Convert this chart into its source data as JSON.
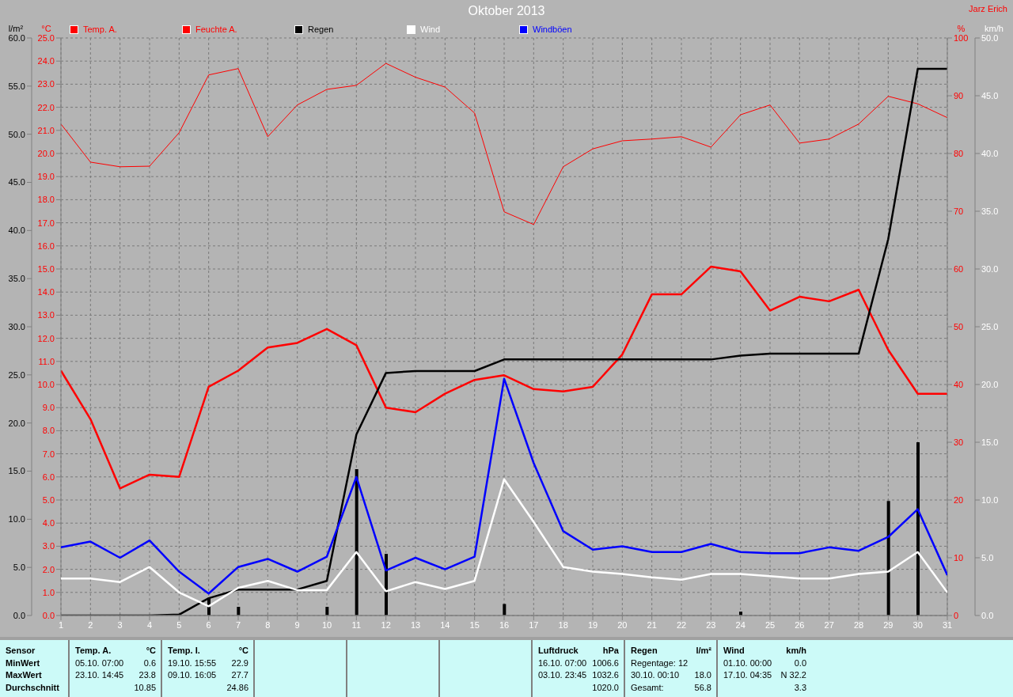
{
  "chart_data": [
    {
      "type": "line",
      "title": "Oktober 2013",
      "x": [
        1,
        2,
        3,
        4,
        5,
        6,
        7,
        8,
        9,
        10,
        11,
        12,
        13,
        14,
        15,
        16,
        17,
        18,
        19,
        20,
        21,
        22,
        23,
        24,
        25,
        26,
        27,
        28,
        29,
        30,
        31
      ],
      "xlim": [
        1,
        31
      ],
      "xticks": [
        1,
        2,
        3,
        4,
        5,
        6,
        7,
        8,
        9,
        10,
        11,
        12,
        13,
        14,
        15,
        16,
        17,
        18,
        19,
        20,
        21,
        22,
        23,
        24,
        25,
        26,
        27,
        28,
        29,
        30,
        31
      ],
      "ylabel": "°C",
      "ylim": [
        0,
        25
      ],
      "yticks": [
        {
          "value": 0,
          "label": "0.0"
        },
        {
          "value": 1,
          "label": "1.0"
        },
        {
          "value": 2,
          "label": "2.0"
        },
        {
          "value": 3,
          "label": "3.0"
        },
        {
          "value": 4,
          "label": "4.0"
        },
        {
          "value": 5,
          "label": "5.0"
        },
        {
          "value": 6,
          "label": "6.0"
        },
        {
          "value": 7,
          "label": "7.0"
        },
        {
          "value": 8,
          "label": "8.0"
        },
        {
          "value": 9,
          "label": "9.0"
        },
        {
          "value": 10,
          "label": "10.0"
        },
        {
          "value": 11,
          "label": "11.0"
        },
        {
          "value": 12,
          "label": "12.0"
        },
        {
          "value": 13,
          "label": "13.0"
        },
        {
          "value": 14,
          "label": "14.0"
        },
        {
          "value": 15,
          "label": "15.0"
        },
        {
          "value": 16,
          "label": "16.0"
        },
        {
          "value": 17,
          "label": "17.0"
        },
        {
          "value": 18,
          "label": "18.0"
        },
        {
          "value": 19,
          "label": "19.0"
        },
        {
          "value": 20,
          "label": "20.0"
        },
        {
          "value": 21,
          "label": "21.0"
        },
        {
          "value": 22,
          "label": "22.0"
        },
        {
          "value": 23,
          "label": "23.0"
        },
        {
          "value": 24,
          "label": "24.0"
        },
        {
          "value": 25,
          "label": "25.0"
        }
      ],
      "y2label": "%",
      "y2lim": [
        0,
        100
      ],
      "y2ticks": [
        0,
        10,
        20,
        30,
        40,
        50,
        60,
        70,
        80,
        90,
        100
      ],
      "y3label": "l/m²",
      "y3lim": [
        0,
        60
      ],
      "y3ticks": [
        {
          "value": 0,
          "label": "0.0"
        },
        {
          "value": 5,
          "label": "5.0"
        },
        {
          "value": 10,
          "label": "10.0"
        },
        {
          "value": 15,
          "label": "15.0"
        },
        {
          "value": 20,
          "label": "20.0"
        },
        {
          "value": 25,
          "label": "25.0"
        },
        {
          "value": 30,
          "label": "30.0"
        },
        {
          "value": 35,
          "label": "35.0"
        },
        {
          "value": 40,
          "label": "40.0"
        },
        {
          "value": 45,
          "label": "45.0"
        },
        {
          "value": 50,
          "label": "50.0"
        },
        {
          "value": 55,
          "label": "55.0"
        },
        {
          "value": 60,
          "label": "60.0"
        }
      ],
      "grid": true,
      "legend": "top left",
      "series": [
        {
          "name": "Temp. A.",
          "color": "#ff0000",
          "values": [
            10.6,
            8.5,
            5.5,
            6.1,
            6.0,
            9.9,
            10.6,
            11.6,
            11.8,
            12.4,
            11.7,
            9.0,
            8.8,
            9.6,
            10.2,
            10.4,
            9.8,
            9.7,
            9.9,
            11.3,
            13.9,
            13.9,
            15.1,
            14.9,
            13.2,
            13.8,
            13.6,
            14.1,
            11.5,
            9.6,
            9.6
          ]
        },
        {
          "name": "Feuchte A.",
          "color": "#ff0000",
          "axis": "y2",
          "values": [
            85.1,
            78.5,
            77.7,
            77.8,
            83.6,
            93.6,
            94.7,
            82.9,
            88.4,
            91.1,
            91.8,
            95.6,
            93.2,
            91.5,
            87.0,
            69.9,
            67.7,
            77.7,
            80.8,
            82.2,
            82.5,
            82.9,
            81.1,
            86.7,
            88.4,
            81.8,
            82.5,
            85.1,
            89.9,
            88.6,
            86.2
          ]
        },
        {
          "color": "#000000",
          "type": "bar",
          "axis": "y3",
          "values": [
            null,
            null,
            null,
            null,
            null,
            1.8,
            0.9,
            null,
            null,
            0.9,
            15.2,
            6.4,
            null,
            null,
            null,
            1.2,
            null,
            null,
            null,
            null,
            null,
            null,
            null,
            0.4,
            null,
            null,
            null,
            null,
            11.9,
            18.0,
            null
          ]
        },
        {
          "name": "Regen",
          "color": "#000000",
          "axis": "y3",
          "values": [
            0,
            0,
            0,
            0,
            0.1,
            1.8,
            2.7,
            2.7,
            2.7,
            3.6,
            18.8,
            25.2,
            25.4,
            25.4,
            25.4,
            26.6,
            26.6,
            26.6,
            26.6,
            26.6,
            26.6,
            26.6,
            26.6,
            27.0,
            27.2,
            27.2,
            27.2,
            27.2,
            39.1,
            56.8,
            56.8
          ]
        }
      ],
      "annotations": [
        "Jarz Erich",
        "Sensor",
        "MinWert",
        "MaxWert",
        "Durchschnitt",
        "Temp. A.\t°C",
        "05.10.  07:00\t0.6",
        "23.10.  14:45\t23.8",
        "\t10.85",
        "Temp. I.\t°C",
        "19.10.  15:55\t22.9",
        "09.10.  16:05\t27.7",
        "\t24.86",
        "Luftdruck\thPa",
        "16.10.  07:00\t1006.6",
        "03.10.  23:45\t1032.6",
        "\t1020.0",
        "Regen\tl/m²",
        "Regentage: 12",
        "30.10.  00:10\t18.0",
        "Gesamt:\t56.8",
        "Wind\tkm/h",
        "01.10.  00:00\t0.0",
        "17.10.  04:35\tN 32.2",
        "\t3.3"
      ]
    },
    {
      "type": "line",
      "tick_labels": "y",
      "legend": "top left",
      "x": [
        1,
        2,
        3,
        4,
        5,
        6,
        7,
        8,
        9,
        10,
        11,
        12,
        13,
        14,
        15,
        16,
        17,
        18,
        19,
        20,
        21,
        22,
        23,
        24,
        25,
        26,
        27,
        28,
        29,
        30,
        31
      ],
      "xlim": [
        1,
        31
      ],
      "ylabel": "km/h",
      "ylim": [
        0,
        50
      ],
      "yticks": [
        {
          "value": 0,
          "label": "0.0"
        },
        {
          "value": 5,
          "label": "5.0"
        },
        {
          "value": 10,
          "label": "10.0"
        },
        {
          "value": 15,
          "label": "15.0"
        },
        {
          "value": 20,
          "label": "20.0"
        },
        {
          "value": 25,
          "label": "25.0"
        },
        {
          "value": 30,
          "label": "30.0"
        },
        {
          "value": 35,
          "label": "35.0"
        },
        {
          "value": 40,
          "label": "40.0"
        },
        {
          "value": 45,
          "label": "45.0"
        },
        {
          "value": 50,
          "label": "50.0"
        }
      ],
      "series": [
        {
          "name": "Wind",
          "color": "#ffffff",
          "values": [
            3.2,
            3.2,
            2.9,
            4.2,
            2.0,
            0.8,
            2.4,
            3.0,
            2.2,
            2.2,
            5.5,
            2.1,
            2.9,
            2.3,
            3.0,
            11.8,
            8.1,
            4.2,
            3.8,
            3.6,
            3.3,
            3.1,
            3.6,
            3.6,
            3.4,
            3.2,
            3.2,
            3.6,
            3.8,
            5.5,
            2.0
          ]
        },
        {
          "name": "Windböen",
          "color": "#0000ff",
          "values": [
            5.9,
            6.4,
            5.0,
            6.5,
            3.8,
            1.9,
            4.2,
            4.9,
            3.8,
            5.1,
            12.0,
            3.9,
            5.0,
            4.0,
            5.1,
            20.5,
            13.2,
            7.3,
            5.7,
            6.0,
            5.5,
            5.5,
            6.2,
            5.5,
            5.4,
            5.4,
            5.9,
            5.6,
            6.8,
            9.2,
            3.5
          ]
        }
      ]
    }
  ]
}
